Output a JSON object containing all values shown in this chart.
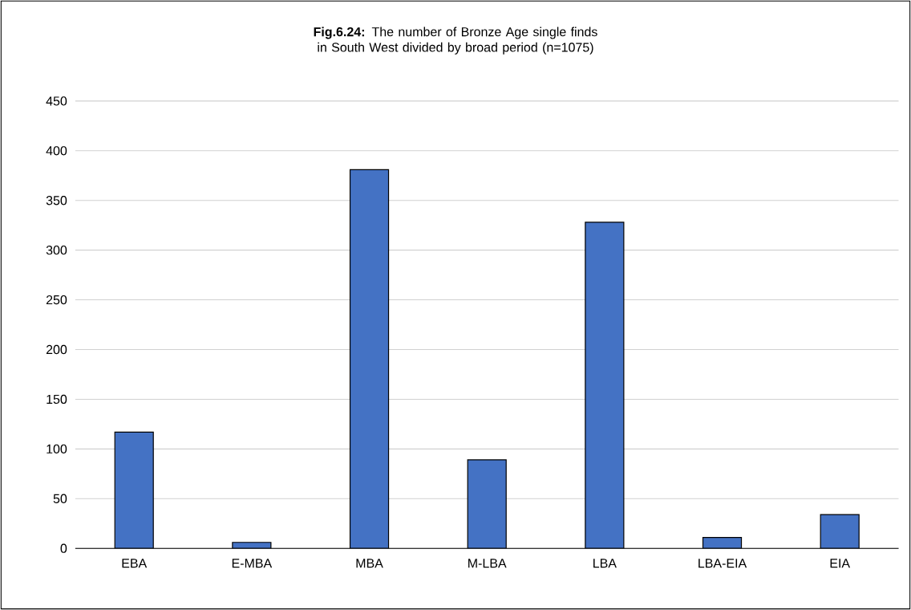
{
  "chart_data": {
    "type": "bar",
    "title": "**Fig.6.24:** The number of Bronze Age single finds in South West divided by broad period (n=1075)",
    "categories": [
      "EBA",
      "E-MBA",
      "MBA",
      "M-LBA",
      "LBA",
      "LBA-EIA",
      "EIA"
    ],
    "values": [
      117,
      6,
      381,
      89,
      328,
      11,
      34
    ],
    "color": "#4472c4",
    "ylim": [
      0,
      450
    ],
    "yticks": [
      0,
      50,
      100,
      150,
      200,
      250,
      300,
      350,
      400,
      450
    ],
    "grid": "y"
  }
}
